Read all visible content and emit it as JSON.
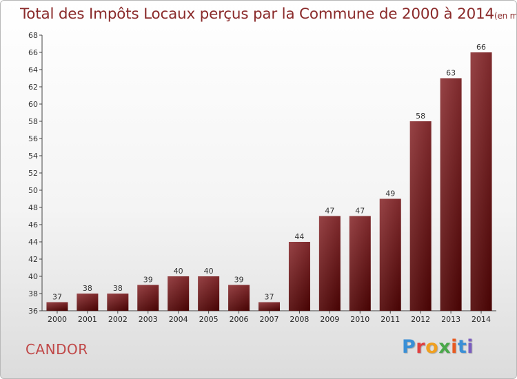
{
  "header": {
    "title": "Total des Impôts Locaux perçus par la Commune de 2000 à 2014",
    "unit": "(en milliers d'€)"
  },
  "footer": {
    "commune": "CANDOR",
    "logo": "Proxiti"
  },
  "chart_data": {
    "type": "bar",
    "title": "Total des Impôts Locaux perçus par la Commune de 2000 à 2014",
    "subtitle": "(en milliers d'€)",
    "xlabel": "",
    "ylabel": "",
    "categories": [
      "2000",
      "2001",
      "2002",
      "2003",
      "2004",
      "2005",
      "2006",
      "2007",
      "2008",
      "2009",
      "2010",
      "2011",
      "2012",
      "2013",
      "2014"
    ],
    "values": [
      37,
      38,
      38,
      39,
      40,
      40,
      39,
      37,
      44,
      47,
      47,
      49,
      58,
      63,
      66
    ],
    "ylim": [
      36,
      68
    ],
    "yticks": [
      36,
      38,
      40,
      42,
      44,
      46,
      48,
      50,
      52,
      54,
      56,
      58,
      60,
      62,
      64,
      66,
      68
    ],
    "grid": false,
    "bar_color": "#6b0d0d"
  }
}
